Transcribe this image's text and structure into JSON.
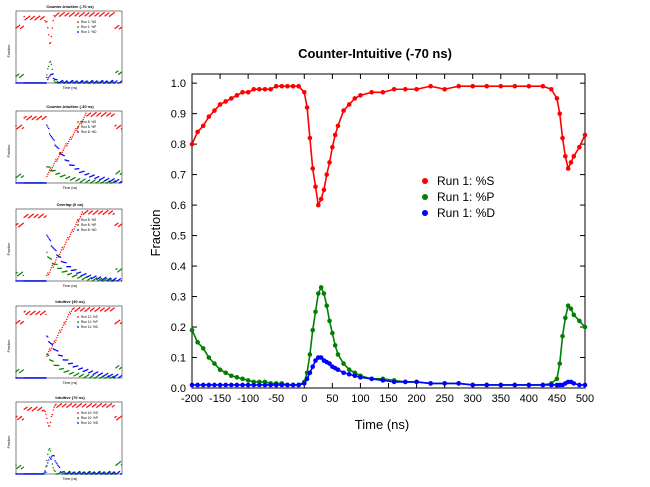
{
  "thumbnails": [
    {
      "title": "Counter-Intuitive (-70 ns)",
      "legend": [
        "Run 1: %S",
        "Run 1: %P",
        "Run 1: %D"
      ],
      "xlabel": "Time (ns)",
      "ylabel": "Fraction",
      "variant": "ci"
    },
    {
      "title": "Counter-Intuitive (-30 ns)",
      "legend": [
        "Run 8: %S",
        "Run 8: %P",
        "Run 8: %D"
      ],
      "xlabel": "Time (ns)",
      "ylabel": "Fraction",
      "variant": "ci30"
    },
    {
      "title": "Overlap (0 ns)",
      "legend": [
        "Run 8: %S",
        "Run 8: %P",
        "Run 8: %D"
      ],
      "xlabel": "Time (ns)",
      "ylabel": "Fraction",
      "variant": "ov"
    },
    {
      "title": "Intuitive (30 ns)",
      "legend": [
        "Run 11: %S",
        "Run 11: %P",
        "Run 11: %D"
      ],
      "xlabel": "Time (ns)",
      "ylabel": "Fraction",
      "variant": "in30"
    },
    {
      "title": "Intuitive (70 ns)",
      "legend": [
        "Run 10: %S",
        "Run 10: %P",
        "Run 10: %D"
      ],
      "xlabel": "Time (ns)",
      "ylabel": "Fraction",
      "variant": "in70"
    }
  ],
  "chart_data": {
    "type": "scatter",
    "title": "Counter-Intuitive (-70 ns)",
    "xlabel": "Time (ns)",
    "ylabel": "Fraction",
    "xlim": [
      -200,
      500
    ],
    "ylim": [
      0,
      1.03
    ],
    "xticks": [
      "-200",
      "-150",
      "-100",
      "-50",
      "0",
      "50",
      "100",
      "150",
      "200",
      "250",
      "300",
      "350",
      "400",
      "450",
      "500"
    ],
    "yticks": [
      "0.0",
      "0.1",
      "0.2",
      "0.3",
      "0.4",
      "0.5",
      "0.6",
      "0.7",
      "0.8",
      "0.9",
      "1.0"
    ],
    "legend_position": "right-middle",
    "series": [
      {
        "name": "Run 1: %S",
        "color": "#ff0000",
        "x": [
          -200,
          -190,
          -180,
          -170,
          -160,
          -150,
          -140,
          -130,
          -120,
          -110,
          -100,
          -90,
          -80,
          -70,
          -60,
          -50,
          -40,
          -30,
          -20,
          -10,
          0,
          5,
          10,
          15,
          20,
          25,
          30,
          35,
          40,
          45,
          50,
          55,
          60,
          70,
          80,
          90,
          100,
          120,
          140,
          160,
          180,
          200,
          225,
          250,
          275,
          300,
          325,
          350,
          375,
          400,
          425,
          440,
          450,
          455,
          460,
          465,
          470,
          475,
          480,
          490,
          500
        ],
        "y": [
          0.8,
          0.84,
          0.86,
          0.89,
          0.91,
          0.93,
          0.94,
          0.95,
          0.96,
          0.97,
          0.97,
          0.98,
          0.98,
          0.98,
          0.98,
          0.99,
          0.99,
          0.99,
          0.99,
          0.99,
          0.97,
          0.92,
          0.82,
          0.72,
          0.66,
          0.6,
          0.62,
          0.65,
          0.7,
          0.74,
          0.79,
          0.83,
          0.86,
          0.91,
          0.93,
          0.95,
          0.96,
          0.97,
          0.97,
          0.98,
          0.98,
          0.98,
          0.99,
          0.98,
          0.99,
          0.99,
          0.99,
          0.99,
          0.99,
          0.99,
          0.99,
          0.98,
          0.95,
          0.9,
          0.82,
          0.76,
          0.72,
          0.74,
          0.76,
          0.79,
          0.83
        ]
      },
      {
        "name": "Run 1: %P",
        "color": "#008000",
        "x": [
          -200,
          -190,
          -180,
          -170,
          -160,
          -150,
          -140,
          -130,
          -120,
          -110,
          -100,
          -90,
          -80,
          -70,
          -60,
          -50,
          -40,
          -30,
          -20,
          -10,
          0,
          5,
          10,
          15,
          20,
          25,
          30,
          35,
          40,
          45,
          50,
          55,
          60,
          70,
          80,
          90,
          100,
          120,
          140,
          160,
          180,
          200,
          225,
          250,
          275,
          300,
          325,
          350,
          375,
          400,
          425,
          440,
          450,
          455,
          460,
          465,
          470,
          475,
          480,
          490,
          500
        ],
        "y": [
          0.19,
          0.15,
          0.13,
          0.1,
          0.08,
          0.06,
          0.05,
          0.04,
          0.035,
          0.03,
          0.025,
          0.02,
          0.02,
          0.02,
          0.015,
          0.015,
          0.015,
          0.01,
          0.01,
          0.01,
          0.02,
          0.05,
          0.11,
          0.19,
          0.25,
          0.31,
          0.33,
          0.31,
          0.27,
          0.22,
          0.18,
          0.14,
          0.11,
          0.08,
          0.06,
          0.05,
          0.04,
          0.03,
          0.03,
          0.025,
          0.02,
          0.02,
          0.015,
          0.015,
          0.015,
          0.01,
          0.01,
          0.01,
          0.01,
          0.01,
          0.01,
          0.015,
          0.03,
          0.08,
          0.17,
          0.23,
          0.27,
          0.26,
          0.24,
          0.22,
          0.2
        ]
      },
      {
        "name": "Run 1: %D",
        "color": "#0000ff",
        "x": [
          -200,
          -190,
          -180,
          -170,
          -160,
          -150,
          -140,
          -130,
          -120,
          -110,
          -100,
          -90,
          -80,
          -70,
          -60,
          -50,
          -40,
          -30,
          -20,
          -10,
          0,
          5,
          10,
          15,
          20,
          25,
          30,
          35,
          40,
          45,
          50,
          55,
          60,
          70,
          80,
          90,
          100,
          120,
          140,
          160,
          180,
          200,
          225,
          250,
          275,
          300,
          325,
          350,
          375,
          400,
          425,
          440,
          450,
          455,
          460,
          465,
          470,
          475,
          480,
          490,
          500
        ],
        "y": [
          0.01,
          0.01,
          0.01,
          0.01,
          0.01,
          0.01,
          0.01,
          0.01,
          0.01,
          0.01,
          0.01,
          0.01,
          0.01,
          0.01,
          0.01,
          0.01,
          0.01,
          0.01,
          0.01,
          0.01,
          0.015,
          0.03,
          0.05,
          0.07,
          0.09,
          0.1,
          0.1,
          0.09,
          0.085,
          0.08,
          0.07,
          0.065,
          0.06,
          0.05,
          0.045,
          0.04,
          0.035,
          0.03,
          0.025,
          0.02,
          0.02,
          0.02,
          0.015,
          0.015,
          0.015,
          0.01,
          0.01,
          0.01,
          0.01,
          0.01,
          0.01,
          0.01,
          0.01,
          0.01,
          0.01,
          0.015,
          0.02,
          0.02,
          0.015,
          0.01,
          0.01
        ]
      }
    ]
  }
}
